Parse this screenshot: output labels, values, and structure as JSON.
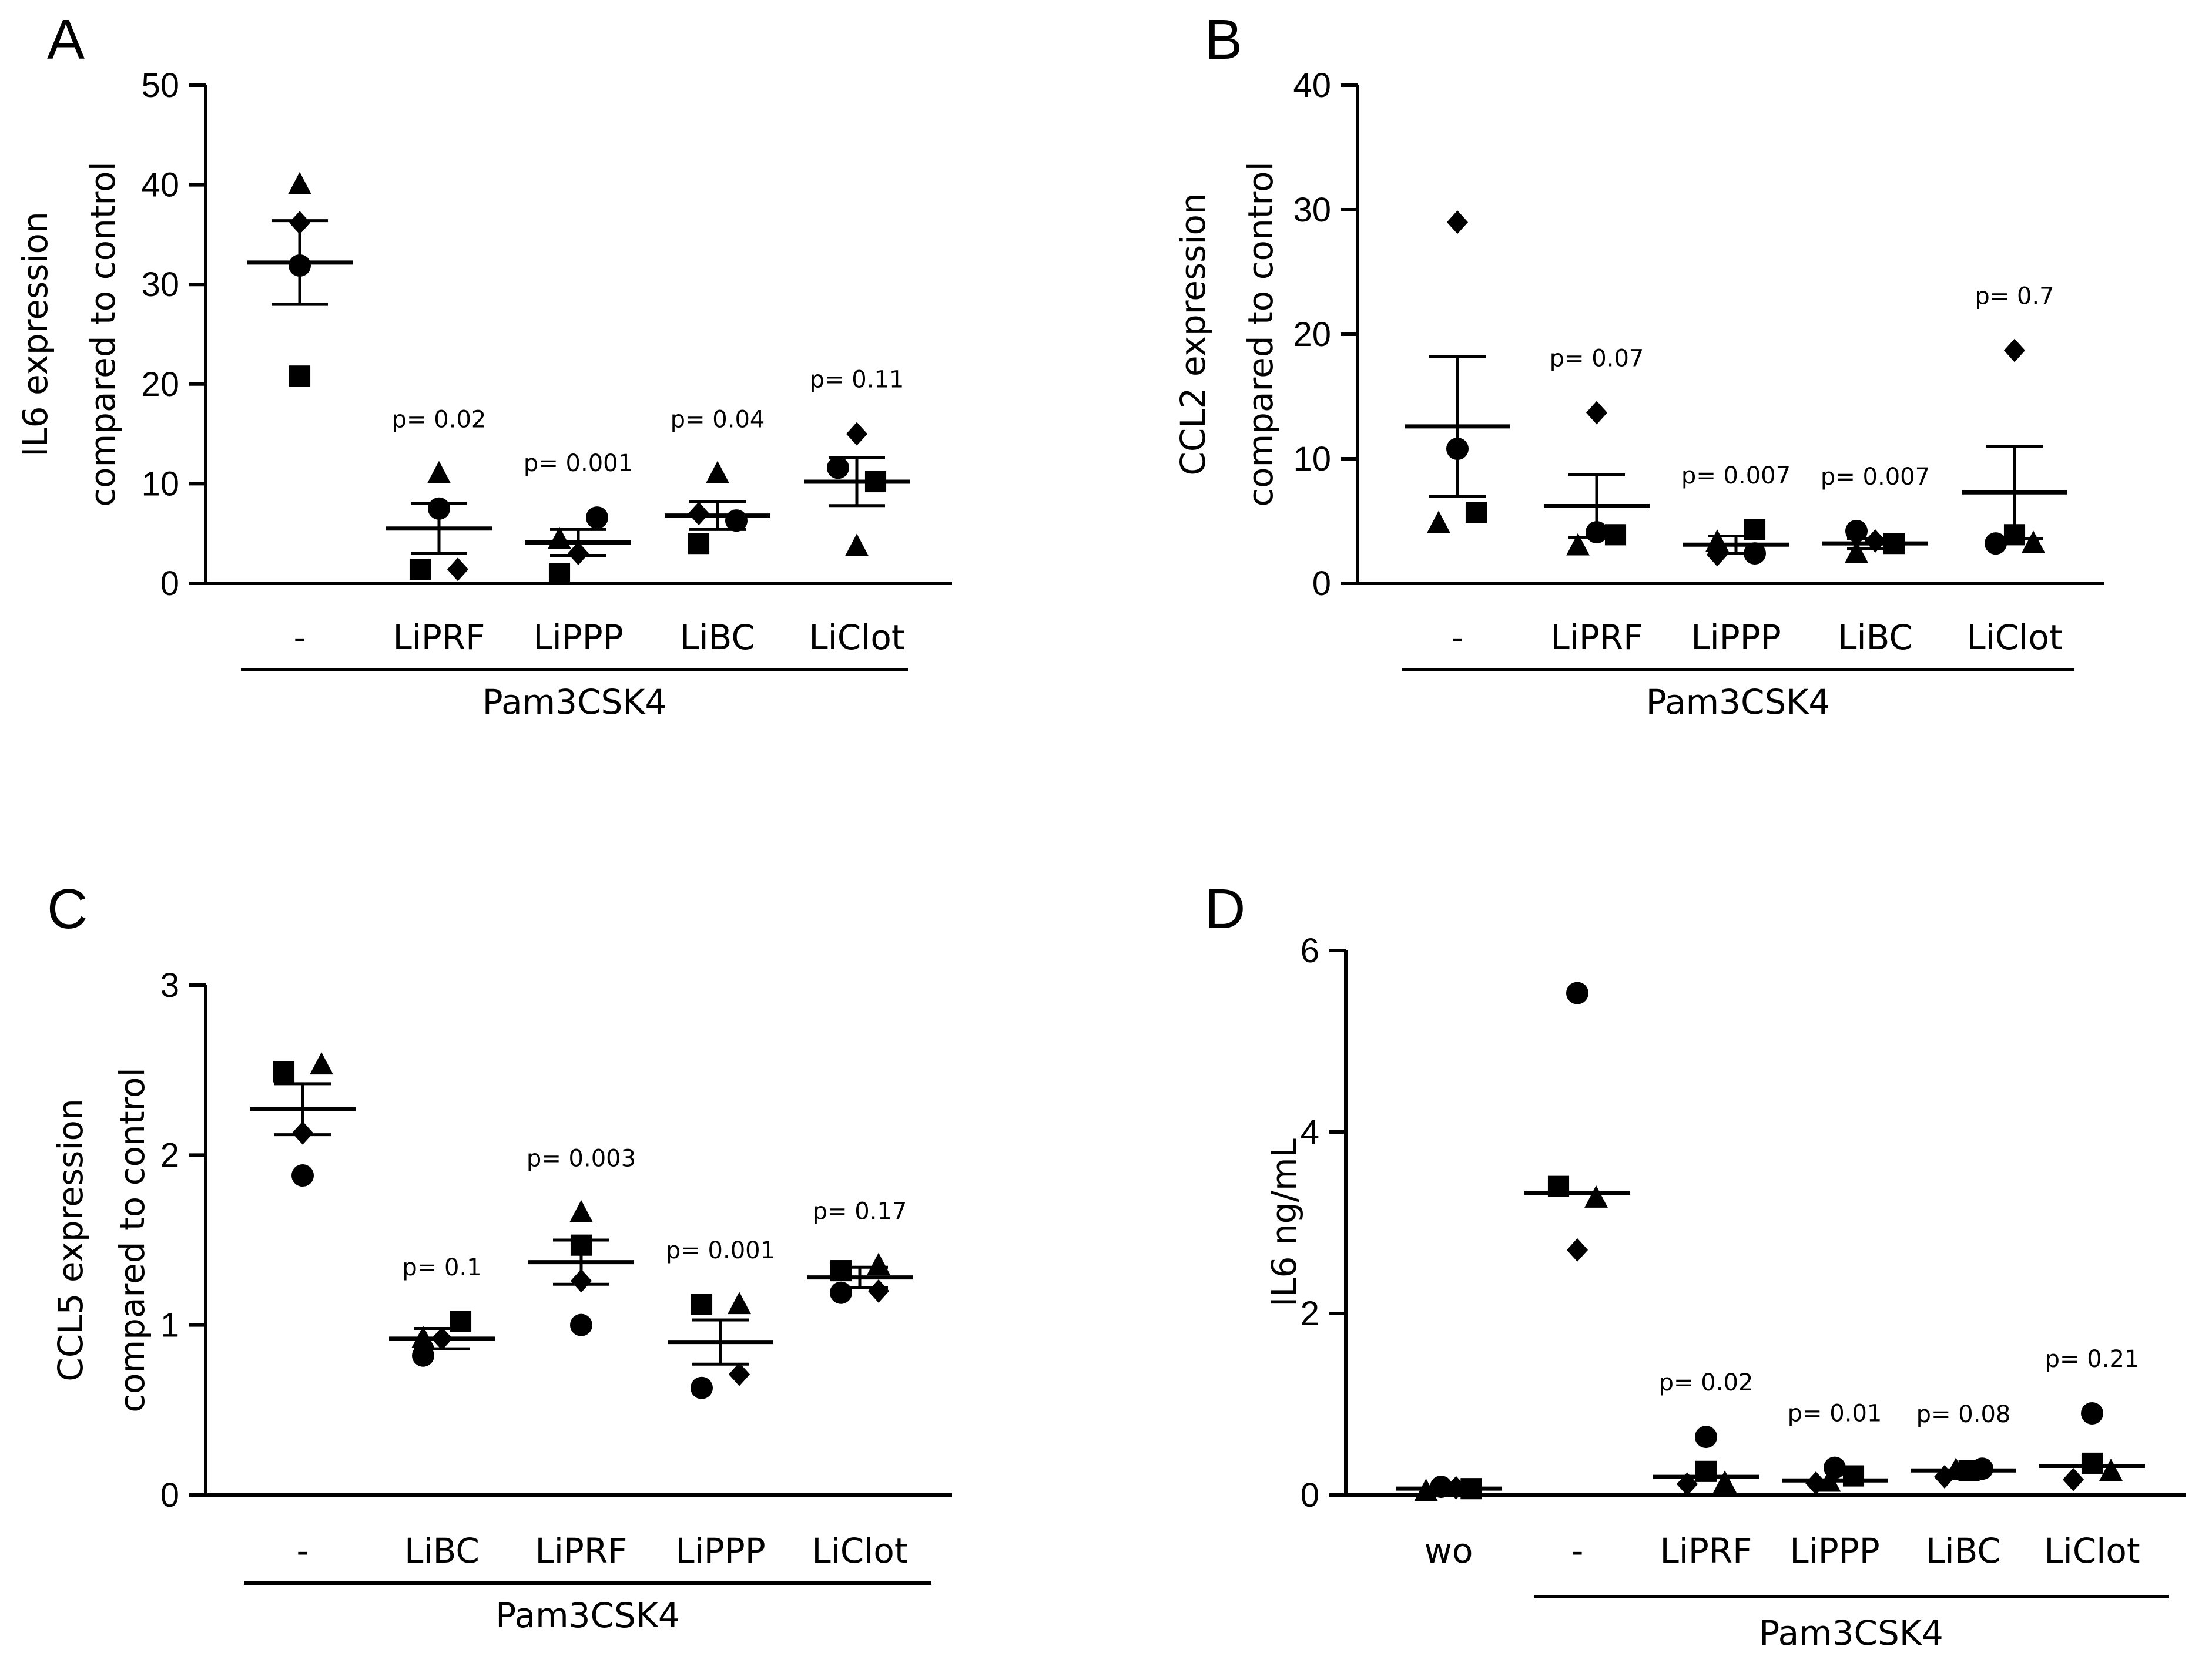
{
  "chart_data": [
    {
      "type": "scatter",
      "panel": "A",
      "ylabel": [
        "IL6 expression",
        "compared to control"
      ],
      "ylim": [
        0,
        50
      ],
      "yticks": [
        0,
        10,
        20,
        30,
        40,
        50
      ],
      "categories": [
        "-",
        "LiPRF",
        "LiPPP",
        "LiBC",
        "LiClot"
      ],
      "group_label": "Pam3CSK4",
      "group_span": [
        "-",
        "LiClot"
      ],
      "p_values": [
        "",
        "p= 0.02",
        "p= 0.001",
        "p= 0.04",
        "p= 0.11"
      ],
      "groups": [
        {
          "mean": 32.2,
          "sem_low": 28.0,
          "sem_high": 36.4,
          "points": [
            {
              "shape": "triangle",
              "x": 0,
              "value": 40.0
            },
            {
              "shape": "diamond",
              "x": 0,
              "value": 36.2
            },
            {
              "shape": "circle",
              "x": 0,
              "value": 31.9
            },
            {
              "shape": "square",
              "x": 0,
              "value": 20.8
            }
          ]
        },
        {
          "mean": 5.5,
          "sem_low": 3.0,
          "sem_high": 8.0,
          "points": [
            {
              "shape": "triangle",
              "x": 0,
              "value": 11.0
            },
            {
              "shape": "circle",
              "x": 0,
              "value": 7.5
            },
            {
              "shape": "square",
              "x": -1,
              "value": 1.4
            },
            {
              "shape": "diamond",
              "x": 1,
              "value": 1.4
            }
          ]
        },
        {
          "mean": 4.1,
          "sem_low": 2.8,
          "sem_high": 5.4,
          "points": [
            {
              "shape": "circle",
              "x": 1,
              "value": 6.6
            },
            {
              "shape": "triangle",
              "x": -1,
              "value": 4.4
            },
            {
              "shape": "diamond",
              "x": 0,
              "value": 3.0
            },
            {
              "shape": "square",
              "x": -1,
              "value": 1.0
            }
          ]
        },
        {
          "mean": 6.8,
          "sem_low": 5.4,
          "sem_high": 8.2,
          "points": [
            {
              "shape": "triangle",
              "x": 0,
              "value": 11.0
            },
            {
              "shape": "diamond",
              "x": -1,
              "value": 7.0
            },
            {
              "shape": "circle",
              "x": 1,
              "value": 6.3
            },
            {
              "shape": "square",
              "x": -1,
              "value": 4.0
            }
          ]
        },
        {
          "mean": 10.2,
          "sem_low": 7.8,
          "sem_high": 12.6,
          "points": [
            {
              "shape": "diamond",
              "x": 0,
              "value": 15.0
            },
            {
              "shape": "circle",
              "x": -1,
              "value": 11.6
            },
            {
              "shape": "square",
              "x": 1,
              "value": 10.2
            },
            {
              "shape": "triangle",
              "x": 0,
              "value": 3.7
            }
          ]
        }
      ]
    },
    {
      "type": "scatter",
      "panel": "B",
      "ylabel": [
        "CCL2 expression",
        "compared to control"
      ],
      "ylim": [
        0,
        40
      ],
      "yticks": [
        0,
        10,
        20,
        30,
        40
      ],
      "categories": [
        "-",
        "LiPRF",
        "LiPPP",
        "LiBC",
        "LiClot"
      ],
      "group_label": "Pam3CSK4",
      "group_span": [
        "-",
        "LiClot"
      ],
      "p_values": [
        "",
        "p= 0.07",
        "p= 0.007",
        "p= 0.007",
        "p= 0.7"
      ],
      "groups": [
        {
          "mean": 12.6,
          "sem_low": 7.0,
          "sem_high": 18.2,
          "points": [
            {
              "shape": "diamond",
              "x": 0,
              "value": 29.0
            },
            {
              "shape": "circle",
              "x": 0,
              "value": 10.8
            },
            {
              "shape": "square",
              "x": 1,
              "value": 5.7
            },
            {
              "shape": "triangle",
              "x": -1,
              "value": 4.8
            }
          ]
        },
        {
          "mean": 6.2,
          "sem_low": 3.7,
          "sem_high": 8.7,
          "points": [
            {
              "shape": "diamond",
              "x": 0,
              "value": 13.7
            },
            {
              "shape": "circle",
              "x": 0,
              "value": 4.1
            },
            {
              "shape": "square",
              "x": 1,
              "value": 3.9
            },
            {
              "shape": "triangle",
              "x": -1,
              "value": 3.0
            }
          ]
        },
        {
          "mean": 3.1,
          "sem_low": 2.4,
          "sem_high": 3.8,
          "points": [
            {
              "shape": "square",
              "x": 1,
              "value": 4.3
            },
            {
              "shape": "triangle",
              "x": -1,
              "value": 3.3
            },
            {
              "shape": "circle",
              "x": 1,
              "value": 2.4
            },
            {
              "shape": "diamond",
              "x": -1,
              "value": 2.3
            }
          ]
        },
        {
          "mean": 3.2,
          "sem_low": 2.8,
          "sem_high": 3.6,
          "points": [
            {
              "shape": "circle",
              "x": -1,
              "value": 4.2
            },
            {
              "shape": "diamond",
              "x": 0,
              "value": 3.4
            },
            {
              "shape": "square",
              "x": 1,
              "value": 3.2
            },
            {
              "shape": "triangle",
              "x": -1,
              "value": 2.4
            }
          ]
        },
        {
          "mean": 7.3,
          "sem_low": 3.6,
          "sem_high": 11.0,
          "points": [
            {
              "shape": "diamond",
              "x": 0,
              "value": 18.7
            },
            {
              "shape": "square",
              "x": 0,
              "value": 3.9
            },
            {
              "shape": "circle",
              "x": -1,
              "value": 3.2
            },
            {
              "shape": "triangle",
              "x": 1,
              "value": 3.2
            }
          ]
        }
      ]
    },
    {
      "type": "scatter",
      "panel": "C",
      "ylabel": [
        "CCL5 expression",
        "compared to control"
      ],
      "ylim": [
        0,
        3
      ],
      "yticks": [
        0,
        1,
        2,
        3
      ],
      "categories": [
        "-",
        "LiBC",
        "LiPRF",
        "LiPPP",
        "LiClot"
      ],
      "group_label": "Pam3CSK4",
      "group_span": [
        "-",
        "LiClot"
      ],
      "p_values": [
        "",
        "p= 0.1",
        "p= 0.003",
        "p= 0.001",
        "p= 0.17"
      ],
      "groups": [
        {
          "mean": 2.27,
          "sem_low": 2.12,
          "sem_high": 2.42,
          "points": [
            {
              "shape": "square",
              "x": -1,
              "value": 2.49
            },
            {
              "shape": "triangle",
              "x": 1,
              "value": 2.53
            },
            {
              "shape": "diamond",
              "x": 0,
              "value": 2.13
            },
            {
              "shape": "circle",
              "x": 0,
              "value": 1.88
            }
          ]
        },
        {
          "mean": 0.92,
          "sem_low": 0.86,
          "sem_high": 0.98,
          "points": [
            {
              "shape": "square",
              "x": 1,
              "value": 1.02
            },
            {
              "shape": "triangle",
              "x": -1,
              "value": 0.92
            },
            {
              "shape": "diamond",
              "x": 0,
              "value": 0.92
            },
            {
              "shape": "circle",
              "x": -1,
              "value": 0.82
            }
          ]
        },
        {
          "mean": 1.37,
          "sem_low": 1.24,
          "sem_high": 1.5,
          "points": [
            {
              "shape": "triangle",
              "x": 0,
              "value": 1.66
            },
            {
              "shape": "square",
              "x": 0,
              "value": 1.47
            },
            {
              "shape": "diamond",
              "x": 0,
              "value": 1.26
            },
            {
              "shape": "circle",
              "x": 0,
              "value": 1.0
            }
          ]
        },
        {
          "mean": 0.9,
          "sem_low": 0.77,
          "sem_high": 1.03,
          "points": [
            {
              "shape": "square",
              "x": -1,
              "value": 1.12
            },
            {
              "shape": "triangle",
              "x": 1,
              "value": 1.12
            },
            {
              "shape": "diamond",
              "x": 1,
              "value": 0.71
            },
            {
              "shape": "circle",
              "x": -1,
              "value": 0.63
            }
          ]
        },
        {
          "mean": 1.28,
          "sem_low": 1.22,
          "sem_high": 1.34,
          "points": [
            {
              "shape": "square",
              "x": -1,
              "value": 1.32
            },
            {
              "shape": "triangle",
              "x": 1,
              "value": 1.35
            },
            {
              "shape": "circle",
              "x": -1,
              "value": 1.19
            },
            {
              "shape": "diamond",
              "x": 1,
              "value": 1.2
            }
          ]
        }
      ]
    },
    {
      "type": "scatter",
      "panel": "D",
      "ylabel": [
        "IL6 ng/mL"
      ],
      "ylim": [
        0,
        6
      ],
      "yticks": [
        0,
        2,
        4,
        6
      ],
      "categories": [
        "wo",
        "-",
        "LiPRF",
        "LiPPP",
        "LiBC",
        "LiClot"
      ],
      "group_label": "Pam3CSK4",
      "group_span": [
        "-",
        "LiClot"
      ],
      "p_values": [
        "",
        "",
        "p= 0.02",
        "p= 0.01",
        "p= 0.08",
        "p= 0.21"
      ],
      "groups": [
        {
          "median": 0.07,
          "points": [
            {
              "shape": "triangle",
              "x": -1.2,
              "value": 0.04
            },
            {
              "shape": "circle",
              "x": -0.4,
              "value": 0.09
            },
            {
              "shape": "diamond",
              "x": 0.4,
              "value": 0.08
            },
            {
              "shape": "square",
              "x": 1.2,
              "value": 0.07
            }
          ]
        },
        {
          "median": 3.33,
          "points": [
            {
              "shape": "circle",
              "x": 0,
              "value": 5.53
            },
            {
              "shape": "square",
              "x": -1,
              "value": 3.4
            },
            {
              "shape": "triangle",
              "x": 1,
              "value": 3.27
            },
            {
              "shape": "diamond",
              "x": 0,
              "value": 2.7
            }
          ]
        },
        {
          "median": 0.2,
          "points": [
            {
              "shape": "circle",
              "x": 0,
              "value": 0.64
            },
            {
              "shape": "square",
              "x": 0,
              "value": 0.26
            },
            {
              "shape": "diamond",
              "x": -1,
              "value": 0.12
            },
            {
              "shape": "triangle",
              "x": 1,
              "value": 0.13
            }
          ]
        },
        {
          "median": 0.16,
          "points": [
            {
              "shape": "circle",
              "x": 0,
              "value": 0.3
            },
            {
              "shape": "square",
              "x": 1,
              "value": 0.21
            },
            {
              "shape": "diamond",
              "x": -1,
              "value": 0.13
            },
            {
              "shape": "triangle",
              "x": -0.3,
              "value": 0.14
            }
          ]
        },
        {
          "median": 0.27,
          "points": [
            {
              "shape": "diamond",
              "x": -1,
              "value": 0.2
            },
            {
              "shape": "triangle",
              "x": -0.4,
              "value": 0.27
            },
            {
              "shape": "square",
              "x": 0.3,
              "value": 0.27
            },
            {
              "shape": "circle",
              "x": 1,
              "value": 0.29
            }
          ]
        },
        {
          "median": 0.32,
          "points": [
            {
              "shape": "circle",
              "x": 0,
              "value": 0.9
            },
            {
              "shape": "square",
              "x": 0,
              "value": 0.35
            },
            {
              "shape": "diamond",
              "x": -1,
              "value": 0.17
            },
            {
              "shape": "triangle",
              "x": 1,
              "value": 0.26
            }
          ]
        }
      ]
    }
  ]
}
